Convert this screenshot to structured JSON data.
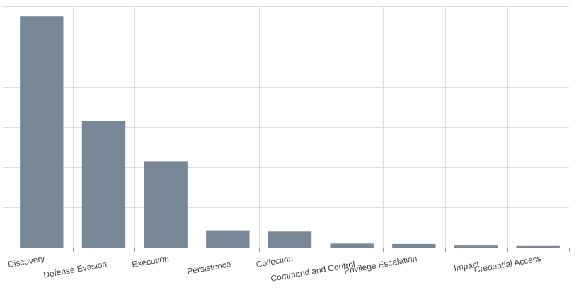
{
  "chart_data": {
    "type": "bar",
    "title": "",
    "xlabel": "",
    "ylabel": "",
    "categories": [
      "Discovery",
      "Defense Evasion",
      "Execution",
      "Persistence",
      "Collection",
      "Command and Control",
      "Privilege Escalation",
      "Impact",
      "Credential Access"
    ],
    "values": [
      57.5,
      31.5,
      21.4,
      4.3,
      4.0,
      1.0,
      0.9,
      0.5,
      0.4
    ],
    "ylim": [
      0,
      60
    ],
    "grid": true,
    "legend": "none",
    "colors": {
      "bar": "#788897",
      "grid": "#dddddd",
      "axis": "#999999",
      "text": "#444444"
    }
  }
}
